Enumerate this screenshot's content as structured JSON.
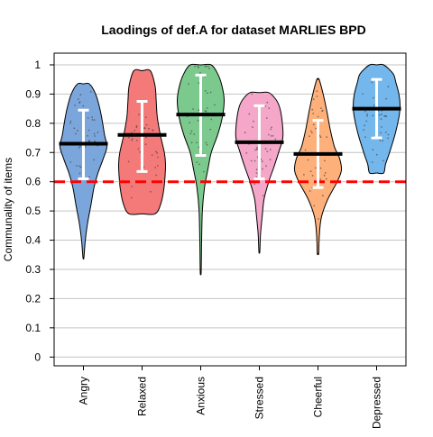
{
  "chart_data": {
    "type": "violin",
    "title": "Laodings of def.A for dataset MARLIES BPD",
    "xlabel": "",
    "ylabel": "Communality of items",
    "ylim": [
      -0.03,
      1.04
    ],
    "yticks": [
      0,
      0.1,
      0.2,
      0.3,
      0.4,
      0.5,
      0.6,
      0.7,
      0.8,
      0.9,
      1
    ],
    "ytick_labels": [
      "0",
      "0.1",
      "0.2",
      "0.3",
      "0.4",
      "0.5",
      "0.6",
      "0.7",
      "0.8",
      "0.9",
      "1"
    ],
    "grid": true,
    "reference_line": {
      "y": 0.6,
      "color": "#ff0000",
      "style": "dashed"
    },
    "categories": [
      "Angry",
      "Relaxed",
      "Anxious",
      "Stressed",
      "Cheerful",
      "Depressed"
    ],
    "series": [
      {
        "color": "#7ba6dc",
        "min": 0.34,
        "max": 0.935,
        "mean": 0.73,
        "sd_low": 0.61,
        "sd_high": 0.845,
        "density": [
          [
            0.34,
            0.02
          ],
          [
            0.4,
            0.08
          ],
          [
            0.46,
            0.18
          ],
          [
            0.52,
            0.32
          ],
          [
            0.58,
            0.45
          ],
          [
            0.63,
            0.62
          ],
          [
            0.68,
            0.85
          ],
          [
            0.72,
            1.0
          ],
          [
            0.76,
            0.9
          ],
          [
            0.8,
            0.82
          ],
          [
            0.85,
            0.7
          ],
          [
            0.9,
            0.52
          ],
          [
            0.935,
            0.25
          ]
        ]
      },
      {
        "color": "#f47a7a",
        "min": 0.49,
        "max": 0.98,
        "mean": 0.76,
        "sd_low": 0.635,
        "sd_high": 0.875,
        "density": [
          [
            0.49,
            0.55
          ],
          [
            0.52,
            0.78
          ],
          [
            0.57,
            0.92
          ],
          [
            0.62,
            0.98
          ],
          [
            0.66,
            1.0
          ],
          [
            0.7,
            0.95
          ],
          [
            0.76,
            0.78
          ],
          [
            0.82,
            0.65
          ],
          [
            0.88,
            0.6
          ],
          [
            0.93,
            0.55
          ],
          [
            0.98,
            0.35
          ]
        ]
      },
      {
        "color": "#7cc98e",
        "min": 0.29,
        "max": 1.0,
        "mean": 0.83,
        "sd_low": 0.69,
        "sd_high": 0.965,
        "density": [
          [
            0.29,
            0.02
          ],
          [
            0.4,
            0.04
          ],
          [
            0.5,
            0.07
          ],
          [
            0.58,
            0.16
          ],
          [
            0.64,
            0.3
          ],
          [
            0.7,
            0.45
          ],
          [
            0.76,
            0.72
          ],
          [
            0.82,
            0.92
          ],
          [
            0.88,
            1.0
          ],
          [
            0.93,
            0.9
          ],
          [
            0.97,
            0.72
          ],
          [
            1.0,
            0.45
          ]
        ]
      },
      {
        "color": "#f4a7c9",
        "min": 0.36,
        "max": 0.905,
        "mean": 0.735,
        "sd_low": 0.61,
        "sd_high": 0.86,
        "density": [
          [
            0.36,
            0.02
          ],
          [
            0.42,
            0.05
          ],
          [
            0.48,
            0.12
          ],
          [
            0.54,
            0.2
          ],
          [
            0.6,
            0.4
          ],
          [
            0.65,
            0.62
          ],
          [
            0.7,
            0.82
          ],
          [
            0.75,
            1.0
          ],
          [
            0.8,
            0.98
          ],
          [
            0.85,
            0.88
          ],
          [
            0.88,
            0.72
          ],
          [
            0.905,
            0.4
          ]
        ]
      },
      {
        "color": "#fdb07a",
        "min": 0.355,
        "max": 0.95,
        "mean": 0.695,
        "sd_low": 0.58,
        "sd_high": 0.81,
        "density": [
          [
            0.355,
            0.03
          ],
          [
            0.42,
            0.06
          ],
          [
            0.48,
            0.15
          ],
          [
            0.54,
            0.42
          ],
          [
            0.6,
            0.82
          ],
          [
            0.64,
            1.0
          ],
          [
            0.68,
            0.92
          ],
          [
            0.72,
            0.7
          ],
          [
            0.78,
            0.52
          ],
          [
            0.84,
            0.38
          ],
          [
            0.9,
            0.22
          ],
          [
            0.95,
            0.05
          ]
        ]
      },
      {
        "color": "#74b7ec",
        "min": 0.63,
        "max": 1.0,
        "mean": 0.85,
        "sd_low": 0.75,
        "sd_high": 0.95,
        "density": [
          [
            0.63,
            0.3
          ],
          [
            0.66,
            0.38
          ],
          [
            0.7,
            0.55
          ],
          [
            0.76,
            0.78
          ],
          [
            0.82,
            0.95
          ],
          [
            0.86,
            1.0
          ],
          [
            0.9,
            0.95
          ],
          [
            0.94,
            0.82
          ],
          [
            0.97,
            0.7
          ],
          [
            1.0,
            0.3
          ]
        ]
      }
    ]
  }
}
